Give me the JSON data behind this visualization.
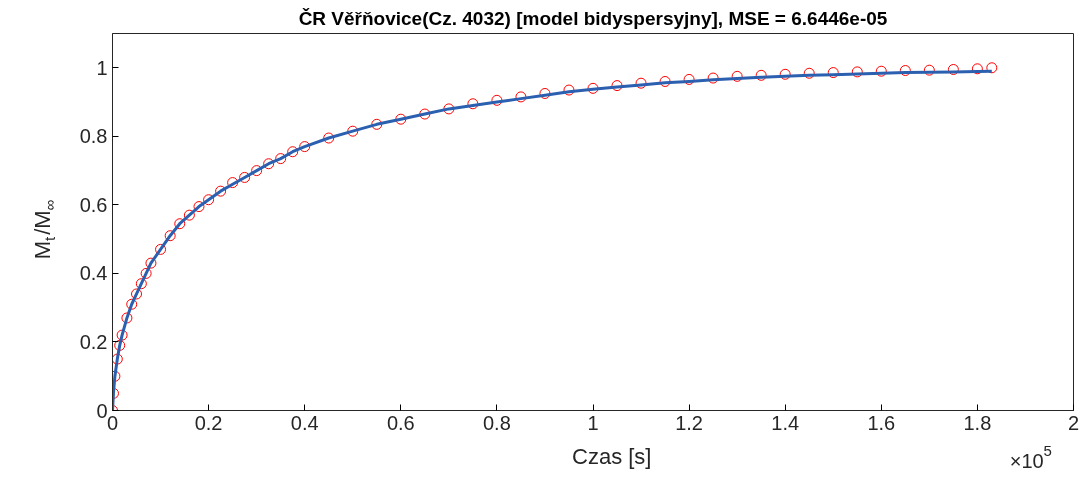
{
  "chart_data": {
    "type": "scatter",
    "title": "ČR Věřňovice(Cz. 4032) [model bidyspersyjny], MSE = 6.6446e-05",
    "xlabel": "Czas [s]",
    "ylabel": "M$_{t}$/M$_{∞}$",
    "annotations": [
      "×10$^{5}$"
    ],
    "x": [
      0,
      0.002,
      0.005,
      0.01,
      0.015,
      0.02,
      0.03,
      0.04,
      0.05,
      0.06,
      0.07,
      0.08,
      0.1,
      0.12,
      0.14,
      0.16,
      0.18,
      0.2,
      0.225,
      0.25,
      0.275,
      0.3,
      0.325,
      0.35,
      0.375,
      0.4,
      0.45,
      0.5,
      0.55,
      0.6,
      0.65,
      0.7,
      0.75,
      0.8,
      0.85,
      0.9,
      0.95,
      1.0,
      1.05,
      1.1,
      1.15,
      1.2,
      1.25,
      1.3,
      1.35,
      1.4,
      1.45,
      1.5,
      1.55,
      1.6,
      1.65,
      1.7,
      1.75,
      1.8,
      1.83
    ],
    "series": [
      {
        "marker": "circle",
        "color": "#ff0000",
        "values": [
          0,
          0.05,
          0.1,
          0.15,
          0.19,
          0.22,
          0.27,
          0.31,
          0.34,
          0.37,
          0.4,
          0.43,
          0.47,
          0.51,
          0.545,
          0.57,
          0.595,
          0.615,
          0.64,
          0.665,
          0.68,
          0.7,
          0.72,
          0.735,
          0.755,
          0.77,
          0.795,
          0.815,
          0.835,
          0.85,
          0.865,
          0.88,
          0.895,
          0.905,
          0.915,
          0.925,
          0.935,
          0.94,
          0.948,
          0.955,
          0.96,
          0.966,
          0.97,
          0.975,
          0.978,
          0.981,
          0.984,
          0.986,
          0.988,
          0.99,
          0.992,
          0.993,
          0.995,
          0.997,
          1.0
        ]
      },
      {
        "type": "line",
        "color": "#2b5fb0",
        "values": [
          0,
          0.05,
          0.1,
          0.15,
          0.19,
          0.22,
          0.27,
          0.31,
          0.34,
          0.37,
          0.4,
          0.43,
          0.47,
          0.51,
          0.545,
          0.57,
          0.595,
          0.615,
          0.64,
          0.66,
          0.68,
          0.7,
          0.72,
          0.735,
          0.755,
          0.77,
          0.795,
          0.815,
          0.835,
          0.85,
          0.865,
          0.88,
          0.89,
          0.9,
          0.91,
          0.92,
          0.93,
          0.937,
          0.944,
          0.95,
          0.956,
          0.96,
          0.965,
          0.969,
          0.972,
          0.975,
          0.978,
          0.98,
          0.982,
          0.984,
          0.986,
          0.987,
          0.988,
          0.989,
          0.99
        ]
      }
    ],
    "xlim": [
      0,
      2
    ],
    "xticks": [
      0,
      0.2,
      0.4,
      0.6,
      0.8,
      1,
      1.2,
      1.4,
      1.6,
      1.8,
      2
    ],
    "ylim": [
      0,
      1.1
    ],
    "yticks": [
      0,
      0.2,
      0.4,
      0.6,
      0.8,
      1
    ],
    "grid": false
  }
}
